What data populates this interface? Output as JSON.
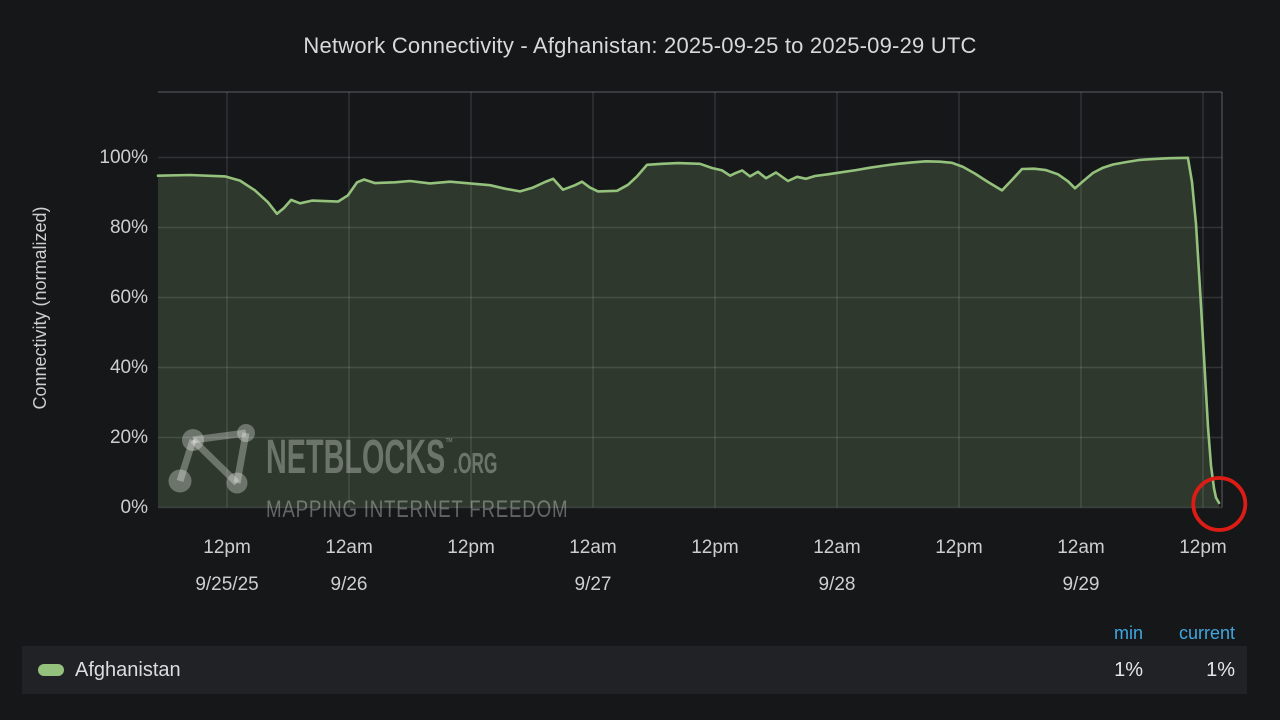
{
  "title": "Network Connectivity - Afghanistan: 2025-09-25 to 2025-09-29 UTC",
  "y_axis_label": "Connectivity (normalized)",
  "watermark": {
    "name": "NETBLOCKS",
    "tm": "™",
    "suffix": ".ORG",
    "tagline": "MAPPING INTERNET FREEDOM"
  },
  "legend": {
    "series_label": "Afghanistan",
    "min_header": "min",
    "current_header": "current",
    "min_value": "1%",
    "current_value": "1%"
  },
  "colors": {
    "background": "#161719",
    "text": "#d8d9da",
    "tick_text": "#cdced0",
    "grid": "rgba(212,220,228,0.14)",
    "border": "rgba(212,220,228,0.24)",
    "series_green": "#94c17c",
    "series_fill": "rgba(143,191,119,0.20)",
    "annotation_red": "#dd1d15",
    "column_header_blue": "#3fa7e1",
    "legend_row_bg": "#212226",
    "watermark": "rgba(255,255,255,0.30)"
  },
  "chart_data": {
    "type": "area",
    "title": "Network Connectivity - Afghanistan: 2025-09-25 to 2025-09-29 UTC",
    "xlabel": "",
    "ylabel": "Connectivity (normalized)",
    "x_unit": "hours since 2025-09-25 00:00 UTC",
    "x_domain_hours": [
      5.21,
      109.87
    ],
    "ylim": [
      0,
      118.6
    ],
    "grid": true,
    "legend_position": "bottom",
    "y_ticks": [
      0,
      20,
      40,
      60,
      80,
      100
    ],
    "y_tick_suffix": "%",
    "x_ticks": [
      {
        "hour": 12,
        "time": "12pm",
        "date": "9/25/25"
      },
      {
        "hour": 24,
        "time": "12am",
        "date": "9/26"
      },
      {
        "hour": 36,
        "time": "12pm",
        "date": ""
      },
      {
        "hour": 48,
        "time": "12am",
        "date": "9/27"
      },
      {
        "hour": 60,
        "time": "12pm",
        "date": ""
      },
      {
        "hour": 72,
        "time": "12am",
        "date": "9/28"
      },
      {
        "hour": 84,
        "time": "12pm",
        "date": ""
      },
      {
        "hour": 96,
        "time": "12am",
        "date": "9/29"
      },
      {
        "hour": 108,
        "time": "12pm",
        "date": ""
      }
    ],
    "series": [
      {
        "name": "Afghanistan",
        "min": "1%",
        "current": "1%",
        "points": [
          [
            5.21,
            94.8
          ],
          [
            8.36,
            95.0
          ],
          [
            11.8,
            94.6
          ],
          [
            13.28,
            93.4
          ],
          [
            14.75,
            90.6
          ],
          [
            16.03,
            87.2
          ],
          [
            16.92,
            83.9
          ],
          [
            17.61,
            85.6
          ],
          [
            18.3,
            87.9
          ],
          [
            19.18,
            86.9
          ],
          [
            20.36,
            87.7
          ],
          [
            22.92,
            87.4
          ],
          [
            23.9,
            89.2
          ],
          [
            24.79,
            92.9
          ],
          [
            25.48,
            93.7
          ],
          [
            26.56,
            92.7
          ],
          [
            28.52,
            92.9
          ],
          [
            30.0,
            93.3
          ],
          [
            31.97,
            92.6
          ],
          [
            33.93,
            93.1
          ],
          [
            35.9,
            92.6
          ],
          [
            37.87,
            92.1
          ],
          [
            39.34,
            91.1
          ],
          [
            40.82,
            90.3
          ],
          [
            42.1,
            91.4
          ],
          [
            43.28,
            93.0
          ],
          [
            44.07,
            93.9
          ],
          [
            45.05,
            90.8
          ],
          [
            46.23,
            92.1
          ],
          [
            46.92,
            93.1
          ],
          [
            47.7,
            91.4
          ],
          [
            48.49,
            90.3
          ],
          [
            50.36,
            90.5
          ],
          [
            51.44,
            92.2
          ],
          [
            52.33,
            94.6
          ],
          [
            53.31,
            97.9
          ],
          [
            54.79,
            98.2
          ],
          [
            56.36,
            98.4
          ],
          [
            58.52,
            98.2
          ],
          [
            59.7,
            97.0
          ],
          [
            60.69,
            96.3
          ],
          [
            61.48,
            94.8
          ],
          [
            61.97,
            95.5
          ],
          [
            62.66,
            96.3
          ],
          [
            63.44,
            94.6
          ],
          [
            64.23,
            95.9
          ],
          [
            65.02,
            94.1
          ],
          [
            66.0,
            95.7
          ],
          [
            67.18,
            93.3
          ],
          [
            68.07,
            94.5
          ],
          [
            68.95,
            93.9
          ],
          [
            69.84,
            94.7
          ],
          [
            71.11,
            95.2
          ],
          [
            72.49,
            95.8
          ],
          [
            73.87,
            96.4
          ],
          [
            75.25,
            97.1
          ],
          [
            76.62,
            97.7
          ],
          [
            78.0,
            98.2
          ],
          [
            79.38,
            98.6
          ],
          [
            80.75,
            98.9
          ],
          [
            82.13,
            98.8
          ],
          [
            83.31,
            98.5
          ],
          [
            84.39,
            97.3
          ],
          [
            85.57,
            95.4
          ],
          [
            86.85,
            93.0
          ],
          [
            88.23,
            90.6
          ],
          [
            89.21,
            93.6
          ],
          [
            90.2,
            96.7
          ],
          [
            91.38,
            96.8
          ],
          [
            92.56,
            96.4
          ],
          [
            93.74,
            95.2
          ],
          [
            94.72,
            93.2
          ],
          [
            95.41,
            91.2
          ],
          [
            96.2,
            93.2
          ],
          [
            97.18,
            95.6
          ],
          [
            98.16,
            97.1
          ],
          [
            99.15,
            98.0
          ],
          [
            100.43,
            98.7
          ],
          [
            101.8,
            99.3
          ],
          [
            103.28,
            99.6
          ],
          [
            104.75,
            99.8
          ],
          [
            106.52,
            99.9
          ],
          [
            106.92,
            93
          ],
          [
            107.31,
            81
          ],
          [
            107.7,
            63
          ],
          [
            108.1,
            43
          ],
          [
            108.49,
            23
          ],
          [
            108.79,
            12
          ],
          [
            109.08,
            5.5
          ],
          [
            109.28,
            2.8
          ],
          [
            109.57,
            1.3
          ]
        ]
      }
    ],
    "annotation": {
      "shape": "circle",
      "hour": 109.6,
      "value": 1,
      "radius_px": 26,
      "meaning": "highlight of connectivity collapse to 1%"
    }
  }
}
